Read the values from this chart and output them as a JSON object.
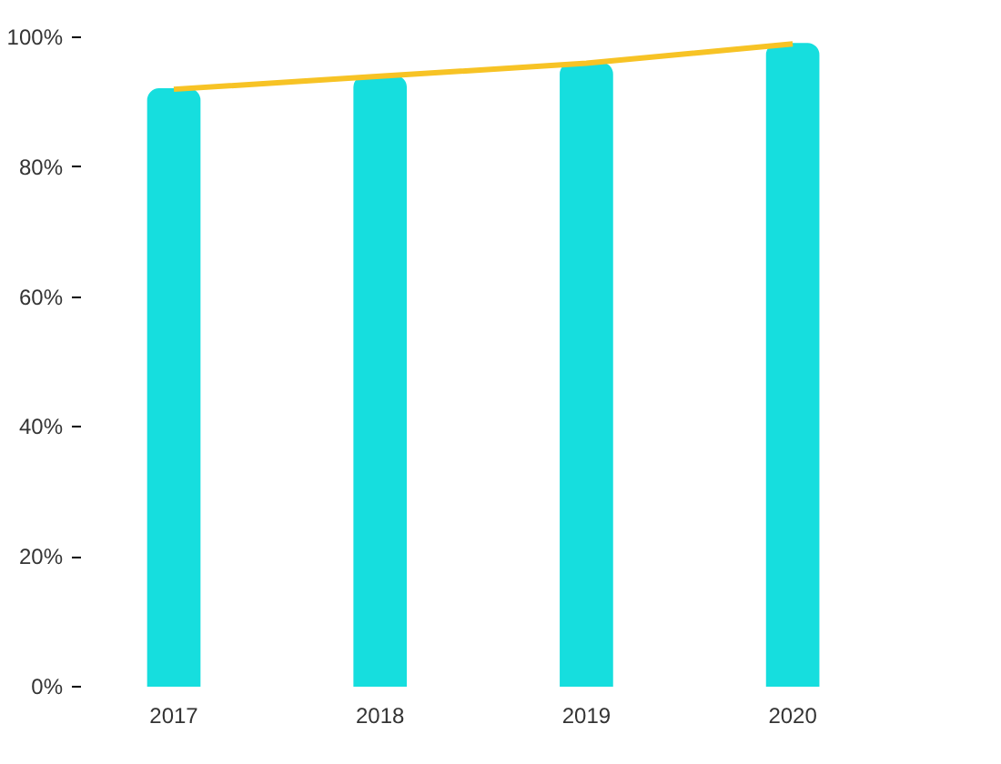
{
  "chart_data": {
    "type": "bar",
    "categories": [
      "2017",
      "2018",
      "2019",
      "2020"
    ],
    "series": [
      {
        "color": "#16dede",
        "values": [
          92,
          94,
          96,
          99
        ]
      },
      {
        "type": "line",
        "color": "#f7c325",
        "values": [
          92,
          94,
          96,
          99
        ]
      }
    ],
    "ylim": [
      0,
      100
    ],
    "yticks": [
      {
        "value": 0,
        "label": "0%"
      },
      {
        "value": 20,
        "label": "20%"
      },
      {
        "value": 40,
        "label": "40%"
      },
      {
        "value": 60,
        "label": "60%"
      },
      {
        "value": 80,
        "label": "80%"
      },
      {
        "value": 100,
        "label": "100%"
      }
    ],
    "grid": false
  }
}
